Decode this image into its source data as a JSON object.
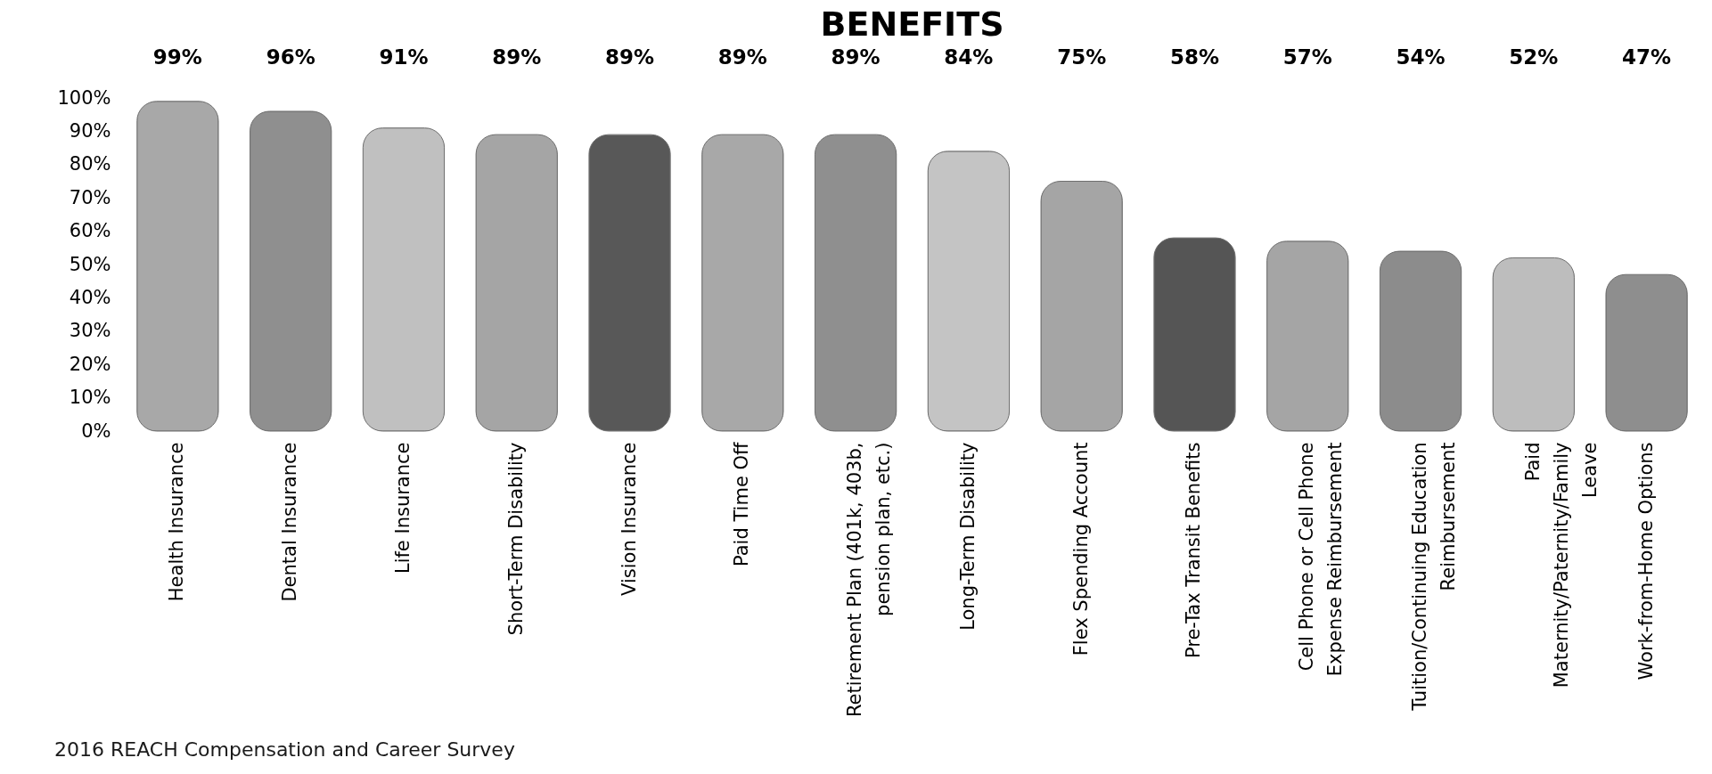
{
  "chart_data": {
    "type": "bar",
    "title": "BENEFITS",
    "categories": [
      "Health Insurance",
      "Dental Insurance",
      "Life Insurance",
      "Short-Term Disability",
      "Vision Insurance",
      "Paid Time Off",
      "Retirement Plan (401k, 403b, pension plan, etc.)",
      "Long-Term Disability",
      "Flex Spending Account",
      "Pre-Tax Transit Benefits",
      "Cell Phone or Cell Phone Expense Reimbursement",
      "Tuition/Continuing Education Reimbursement",
      "Paid Maternity/Paternity/Family Leave",
      "Work-from-Home Options"
    ],
    "values": [
      99,
      96,
      91,
      89,
      89,
      89,
      89,
      84,
      75,
      58,
      57,
      54,
      52,
      47
    ],
    "colors": [
      "#a8a8a8",
      "#8f8f8f",
      "#c0c0c0",
      "#a5a5a5",
      "#585858",
      "#a8a8a8",
      "#8f8f8f",
      "#c4c4c4",
      "#a5a5a5",
      "#555555",
      "#a5a5a5",
      "#8c8c8c",
      "#bdbdbd",
      "#8e8e8e"
    ],
    "value_labels": [
      "99%",
      "96%",
      "91%",
      "89%",
      "89%",
      "89%",
      "89%",
      "84%",
      "75%",
      "58%",
      "57%",
      "54%",
      "52%",
      "47%"
    ],
    "ylim": [
      0,
      100
    ],
    "yticks": [
      {
        "value": 0,
        "label": "0%"
      },
      {
        "value": 10,
        "label": "10%"
      },
      {
        "value": 20,
        "label": "20%"
      },
      {
        "value": 30,
        "label": "30%"
      },
      {
        "value": 40,
        "label": "40%"
      },
      {
        "value": 50,
        "label": "50%"
      },
      {
        "value": 60,
        "label": "60%"
      },
      {
        "value": 70,
        "label": "70%"
      },
      {
        "value": 80,
        "label": "80%"
      },
      {
        "value": 90,
        "label": "90%"
      },
      {
        "value": 100,
        "label": "100%"
      }
    ],
    "annotations": [
      "2016 REACH Compensation and Career Survey"
    ]
  }
}
